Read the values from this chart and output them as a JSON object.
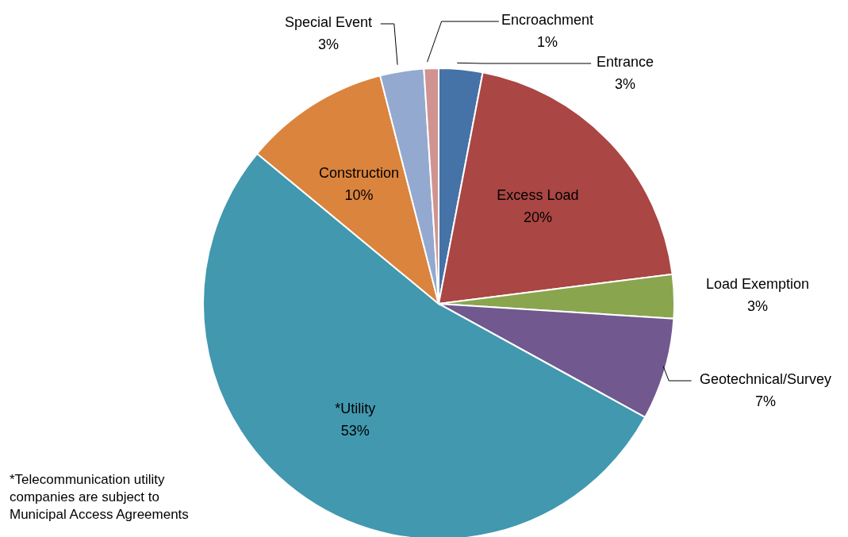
{
  "chart_data": {
    "type": "pie",
    "categories": [
      "Entrance",
      "Excess Load",
      "Load Exemption",
      "Geotechnical/Survey",
      "*Utility",
      "Construction",
      "Special Event",
      "Encroachment"
    ],
    "values": [
      3,
      20,
      3,
      7,
      53,
      10,
      3,
      1
    ],
    "value_labels": [
      "3%",
      "20%",
      "3%",
      "7%",
      "53%",
      "10%",
      "3%",
      "1%"
    ],
    "colors": [
      "#4572a7",
      "#aa4643",
      "#89a54e",
      "#71588f",
      "#4198af",
      "#db843d",
      "#93a9cf",
      "#d09392"
    ],
    "annotations": [
      "*Telecommunication utility companies are subject to Municipal Access Agreements"
    ]
  }
}
